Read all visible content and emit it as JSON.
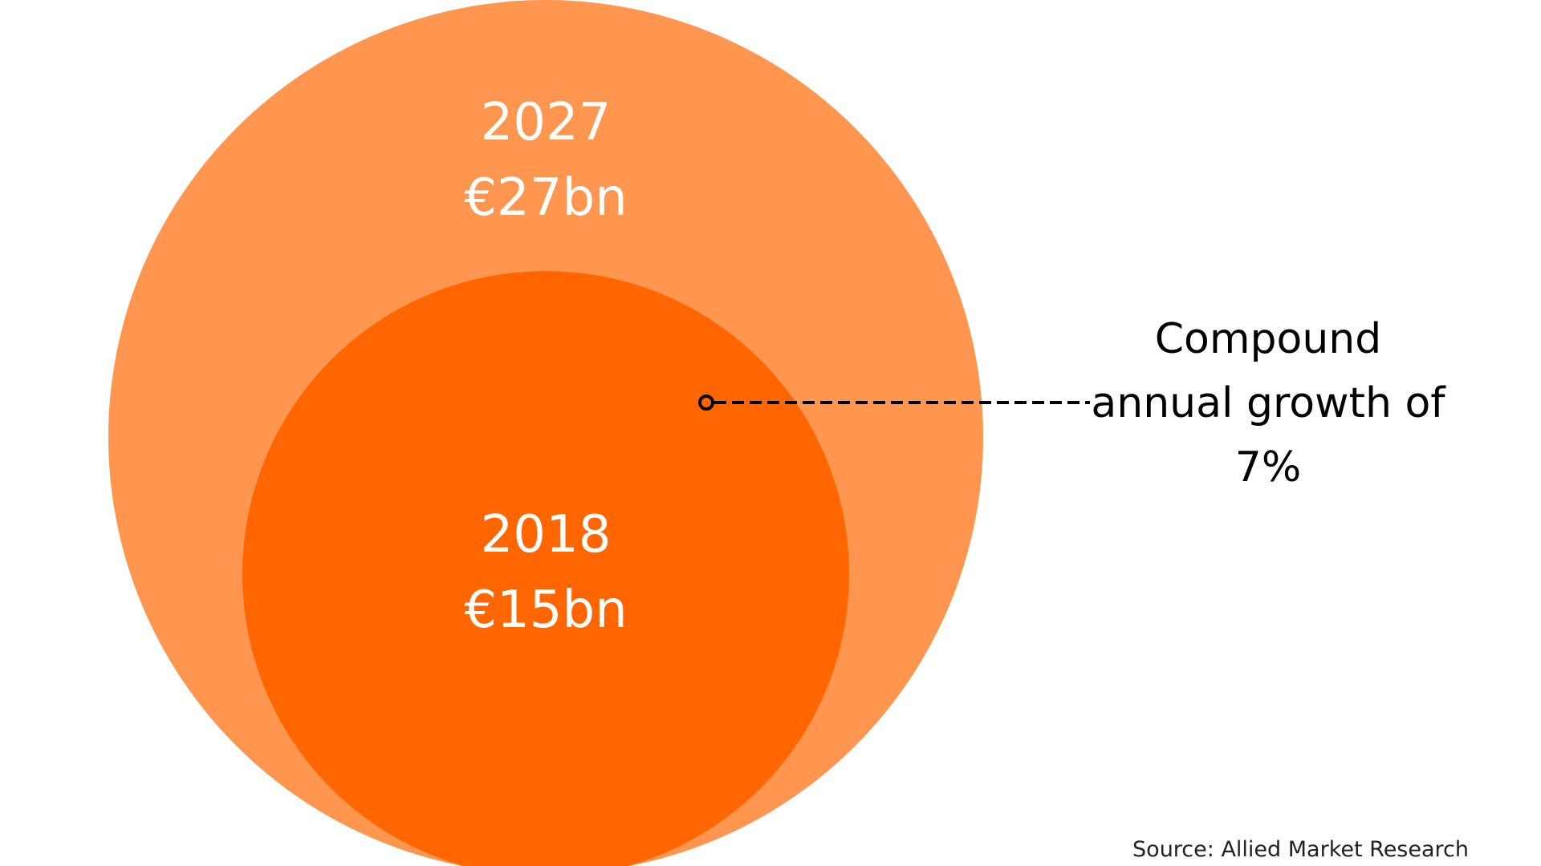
{
  "chart_data": {
    "type": "bubble",
    "series": [
      {
        "year": "2027",
        "value": 27,
        "label": "€27bn",
        "color": "#FF964F"
      },
      {
        "year": "2018",
        "value": 15,
        "label": "€15bn",
        "color": "#FF6600"
      }
    ],
    "annotation": {
      "lines": [
        "Compound",
        "annual growth of",
        "7%"
      ],
      "growth_rate_percent": 7,
      "connector": "dashed"
    },
    "source": "Source: Allied Market Research"
  }
}
